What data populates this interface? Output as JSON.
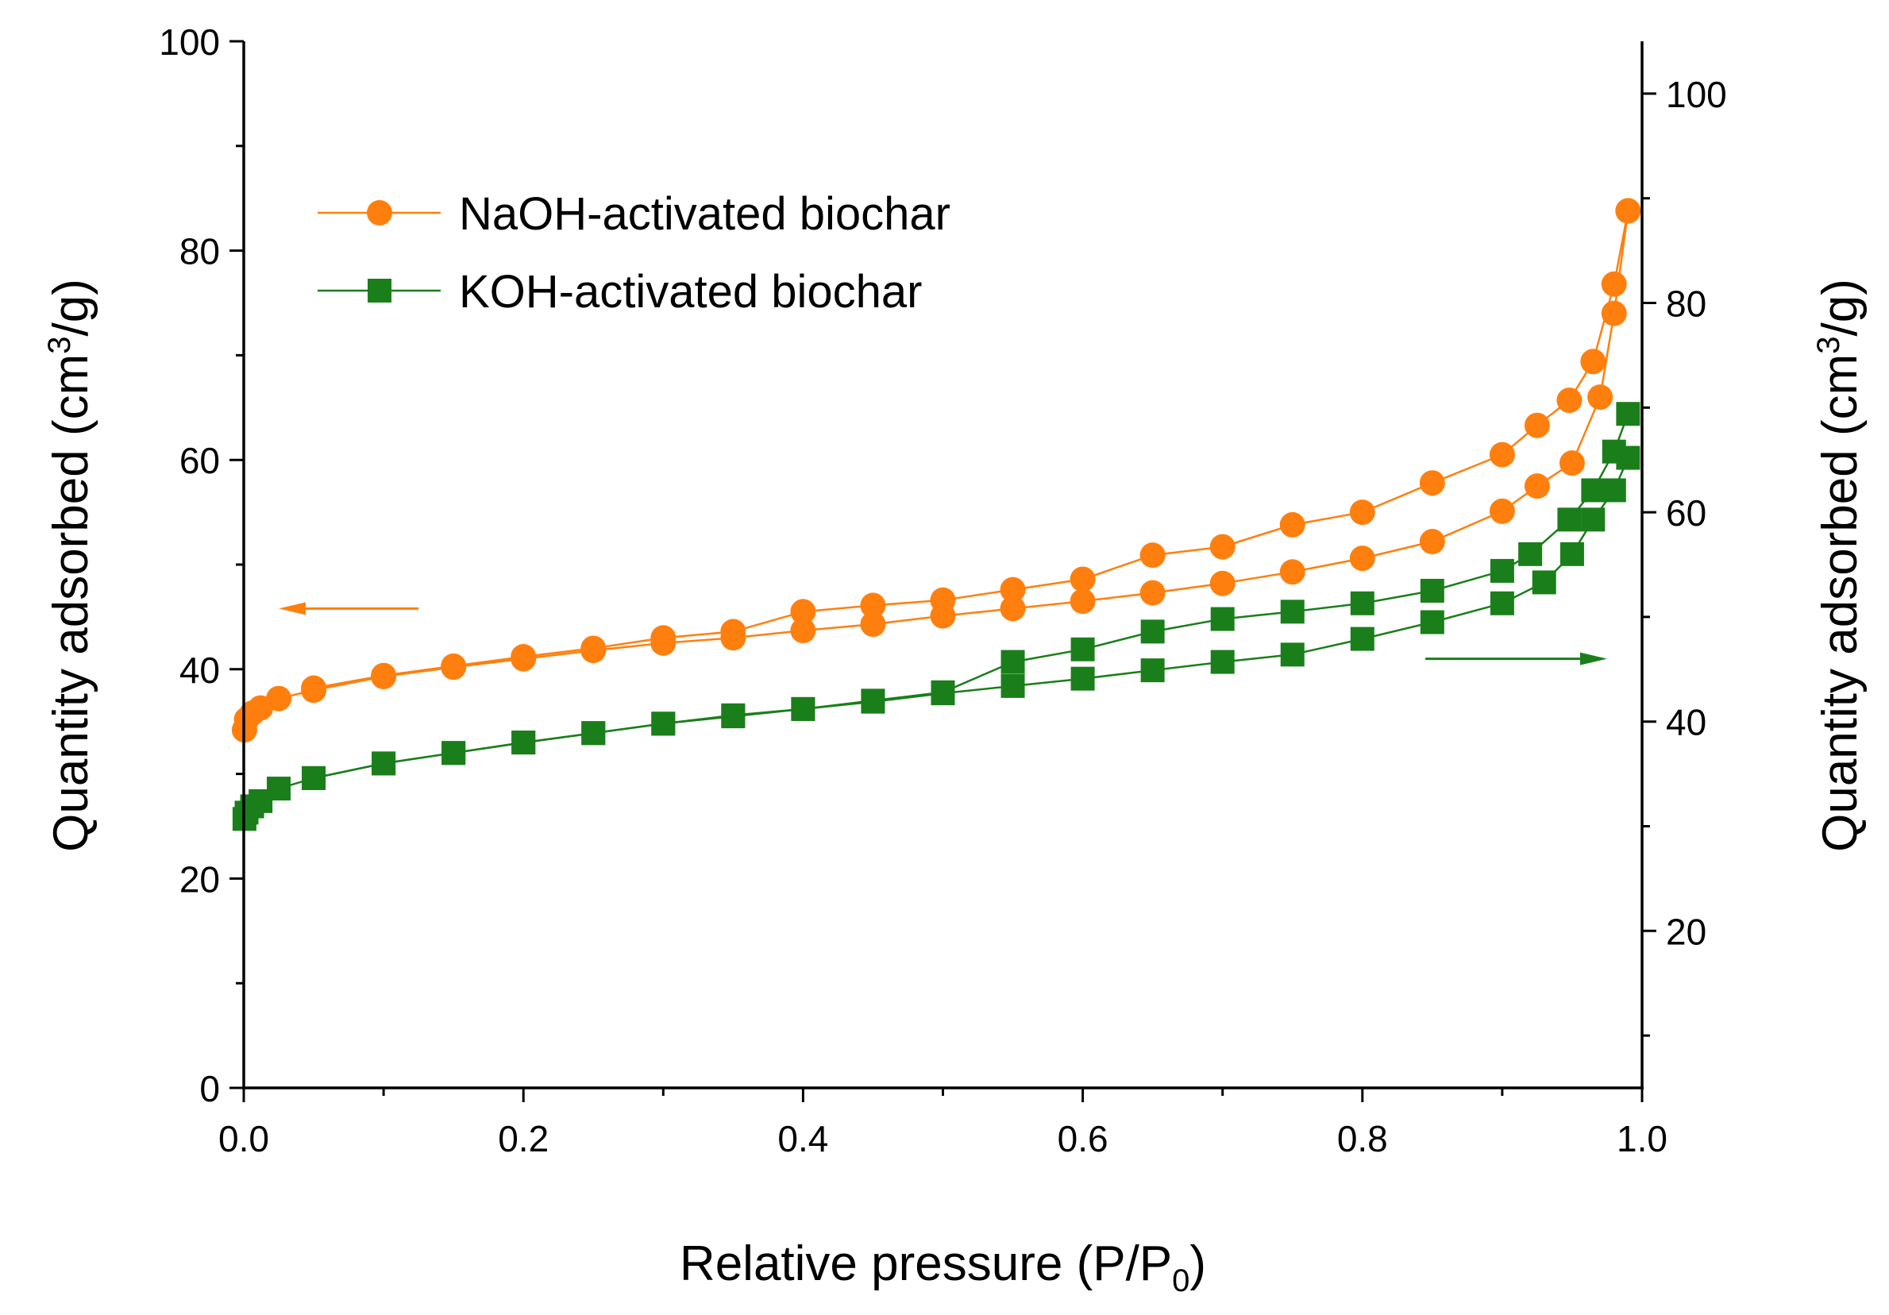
{
  "chart_data": {
    "type": "line",
    "title": "",
    "xlabel": "Relative pressure (P/P",
    "xlabel_sub": "0",
    "xlabel_end": ")",
    "ylabel_left": "Quantity adsorbed (cm",
    "ylabel_left_sup": "3",
    "ylabel_left_end": "/g)",
    "ylabel_right": "Quantity adsorbed (cm",
    "ylabel_right_sup": "3",
    "ylabel_right_end": "/g)",
    "xlim": [
      0.0,
      1.0
    ],
    "ylim_left": [
      0,
      100
    ],
    "ylim_right": [
      5,
      105
    ],
    "x_ticks": [
      "0.0",
      "0.2",
      "0.4",
      "0.6",
      "0.8",
      "1.0"
    ],
    "x_tick_values": [
      0.0,
      0.2,
      0.4,
      0.6,
      0.8,
      1.0
    ],
    "y_left_ticks": [
      "0",
      "20",
      "40",
      "60",
      "80",
      "100"
    ],
    "y_left_tick_values": [
      0,
      20,
      40,
      60,
      80,
      100
    ],
    "y_right_ticks": [
      "20",
      "40",
      "60",
      "80",
      "100"
    ],
    "y_right_tick_values": [
      20,
      40,
      60,
      80,
      100
    ],
    "legend_position": "upper-left",
    "arrows": [
      {
        "series": "NaOH-activated biochar",
        "direction": "left",
        "axis": "left",
        "x_from": 0.125,
        "x_to": 0.025,
        "y": 45.8
      },
      {
        "series": "KOH-activated biochar",
        "direction": "right",
        "axis": "right",
        "x_from": 0.845,
        "x_to": 0.975,
        "y": 46.0
      }
    ],
    "series": [
      {
        "name": "NaOH-activated biochar",
        "color": "#ff7f0e",
        "marker": "circle",
        "axis": "left",
        "adsorption": {
          "x": [
            0.0005,
            0.002,
            0.006,
            0.012,
            0.025,
            0.05,
            0.1,
            0.15,
            0.2,
            0.25,
            0.3,
            0.35,
            0.4,
            0.45,
            0.5,
            0.55,
            0.6,
            0.65,
            0.7,
            0.75,
            0.8,
            0.85,
            0.9,
            0.925,
            0.95,
            0.97,
            0.98,
            0.99
          ],
          "y": [
            34.2,
            35.2,
            35.8,
            36.3,
            37.2,
            38.0,
            39.3,
            40.2,
            41.0,
            41.8,
            42.5,
            43.0,
            43.7,
            44.3,
            45.1,
            45.8,
            46.5,
            47.3,
            48.2,
            49.3,
            50.6,
            52.2,
            55.1,
            57.5,
            59.7,
            66.0,
            74.0,
            83.8
          ]
        },
        "desorption": {
          "x": [
            0.99,
            0.98,
            0.965,
            0.948,
            0.925,
            0.9,
            0.85,
            0.8,
            0.75,
            0.7,
            0.65,
            0.6,
            0.55,
            0.5,
            0.45,
            0.4,
            0.35,
            0.3,
            0.25,
            0.2,
            0.15,
            0.1,
            0.05
          ],
          "y": [
            83.8,
            76.8,
            69.4,
            65.7,
            63.3,
            60.5,
            57.8,
            55.0,
            53.8,
            51.7,
            50.9,
            48.6,
            47.6,
            46.6,
            46.1,
            45.5,
            43.6,
            43.0,
            42.0,
            41.2,
            40.3,
            39.4,
            38.2
          ]
        }
      },
      {
        "name": "KOH-activated biochar",
        "color": "#1a7f1a",
        "marker": "square",
        "axis": "right",
        "adsorption": {
          "x": [
            0.0005,
            0.002,
            0.006,
            0.012,
            0.025,
            0.05,
            0.1,
            0.15,
            0.2,
            0.25,
            0.3,
            0.35,
            0.4,
            0.45,
            0.5,
            0.55,
            0.6,
            0.65,
            0.7,
            0.75,
            0.8,
            0.85,
            0.9,
            0.93,
            0.95,
            0.965,
            0.98,
            0.99
          ],
          "y": [
            30.7,
            31.3,
            31.9,
            32.4,
            33.6,
            34.6,
            36.0,
            37.0,
            38.0,
            38.9,
            39.8,
            40.5,
            41.2,
            41.9,
            42.7,
            43.4,
            44.1,
            44.9,
            45.7,
            46.4,
            47.9,
            49.5,
            51.3,
            53.3,
            56.0,
            59.3,
            62.1,
            65.2
          ]
        },
        "desorption": {
          "x": [
            0.99,
            0.98,
            0.965,
            0.948,
            0.92,
            0.9,
            0.85,
            0.8,
            0.75,
            0.7,
            0.65,
            0.6,
            0.55,
            0.5,
            0.45,
            0.4,
            0.35,
            0.3,
            0.25,
            0.2,
            0.15,
            0.1,
            0.05
          ],
          "y": [
            69.4,
            65.8,
            62.1,
            59.3,
            56.0,
            54.4,
            52.5,
            51.3,
            50.5,
            49.8,
            48.6,
            46.9,
            45.7,
            42.8,
            42.0,
            41.2,
            40.6,
            39.8,
            38.9,
            38.0,
            37.0,
            36.0,
            34.6
          ]
        }
      }
    ]
  }
}
